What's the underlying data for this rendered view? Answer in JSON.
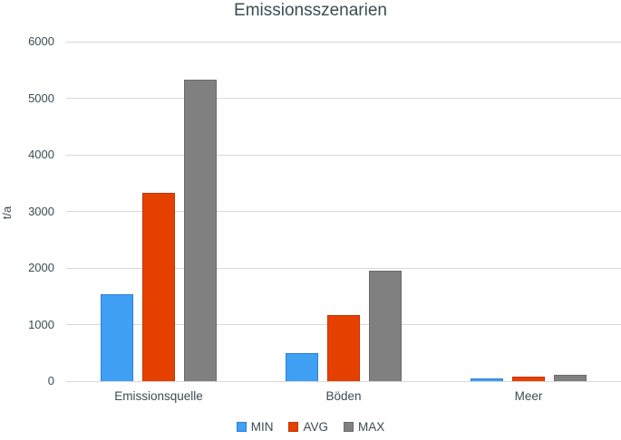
{
  "title": "Emissionsszenarien",
  "chart_data": {
    "type": "bar",
    "title": "Emissionsszenarien",
    "categories": [
      "Emissionsquelle",
      "Böden",
      "Meer"
    ],
    "series": [
      {
        "name": "MIN",
        "color": "#3FA0F4",
        "border_color": "#2D7FD9",
        "values": [
          1530,
          490,
          40
        ]
      },
      {
        "name": "AVG",
        "color": "#E64000",
        "border_color": "#C03600",
        "values": [
          3330,
          1170,
          80
        ]
      },
      {
        "name": "MAX",
        "color": "#808080",
        "border_color": "#6B6B6B",
        "values": [
          5330,
          1950,
          115
        ]
      }
    ],
    "xlabel": "",
    "ylabel": "t/a",
    "ylim": [
      0,
      6000
    ],
    "ytick_step": 1000,
    "yticks": [
      0,
      1000,
      2000,
      3000,
      4000,
      5000,
      6000
    ],
    "grid": true,
    "legend_position": "bottom",
    "text_color": "#3B4C53",
    "grid_color": "#D9D9D9",
    "background_color": "#FFFFFF"
  }
}
